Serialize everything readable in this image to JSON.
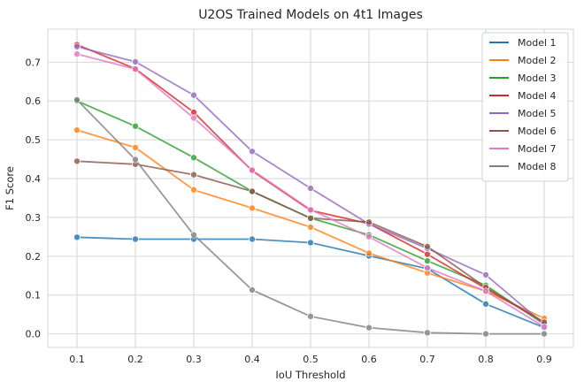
{
  "chart_data": {
    "type": "line",
    "title": "U2OS Trained Models on 4t1 Images",
    "xlabel": "IoU Threshold",
    "ylabel": "F1 Score",
    "x": [
      0.1,
      0.2,
      0.3,
      0.4,
      0.5,
      0.6,
      0.7,
      0.8,
      0.9
    ],
    "x_tick_labels": [
      "0.1",
      "0.2",
      "0.3",
      "0.4",
      "0.5",
      "0.6",
      "0.7",
      "0.8",
      "0.9"
    ],
    "y_ticks": [
      0.0,
      0.1,
      0.2,
      0.3,
      0.4,
      0.5,
      0.6,
      0.7
    ],
    "y_tick_labels": [
      "0.0",
      "0.1",
      "0.2",
      "0.3",
      "0.4",
      "0.5",
      "0.6",
      "0.7"
    ],
    "xlim": [
      0.05,
      0.95
    ],
    "ylim": [
      -0.035,
      0.785
    ],
    "grid": true,
    "legend_position": "top-right",
    "series": [
      {
        "name": "Model 1",
        "color": "#1f77b4",
        "values": [
          0.249,
          0.244,
          0.244,
          0.244,
          0.235,
          0.201,
          0.168,
          0.077,
          0.016
        ]
      },
      {
        "name": "Model 2",
        "color": "#ff7f0e",
        "values": [
          0.525,
          0.48,
          0.371,
          0.324,
          0.275,
          0.208,
          0.157,
          0.11,
          0.04
        ]
      },
      {
        "name": "Model 3",
        "color": "#2ca02c",
        "values": [
          0.6,
          0.535,
          0.454,
          0.367,
          0.298,
          0.255,
          0.188,
          0.125,
          0.025
        ]
      },
      {
        "name": "Model 4",
        "color": "#d62728",
        "values": [
          0.745,
          0.683,
          0.571,
          0.42,
          0.318,
          0.284,
          0.205,
          0.117,
          0.03
        ]
      },
      {
        "name": "Model 5",
        "color": "#9467bd",
        "values": [
          0.74,
          0.701,
          0.615,
          0.47,
          0.375,
          0.283,
          0.22,
          0.152,
          0.025
        ]
      },
      {
        "name": "Model 6",
        "color": "#8c564b",
        "values": [
          0.445,
          0.437,
          0.41,
          0.367,
          0.298,
          0.288,
          0.225,
          0.12,
          0.03
        ]
      },
      {
        "name": "Model 7",
        "color": "#e377c2",
        "values": [
          0.721,
          0.682,
          0.556,
          0.422,
          0.32,
          0.25,
          0.17,
          0.11,
          0.018
        ]
      },
      {
        "name": "Model 8",
        "color": "#7f7f7f",
        "values": [
          0.603,
          0.449,
          0.255,
          0.113,
          0.045,
          0.016,
          0.003,
          0.0,
          0.0
        ]
      }
    ]
  }
}
